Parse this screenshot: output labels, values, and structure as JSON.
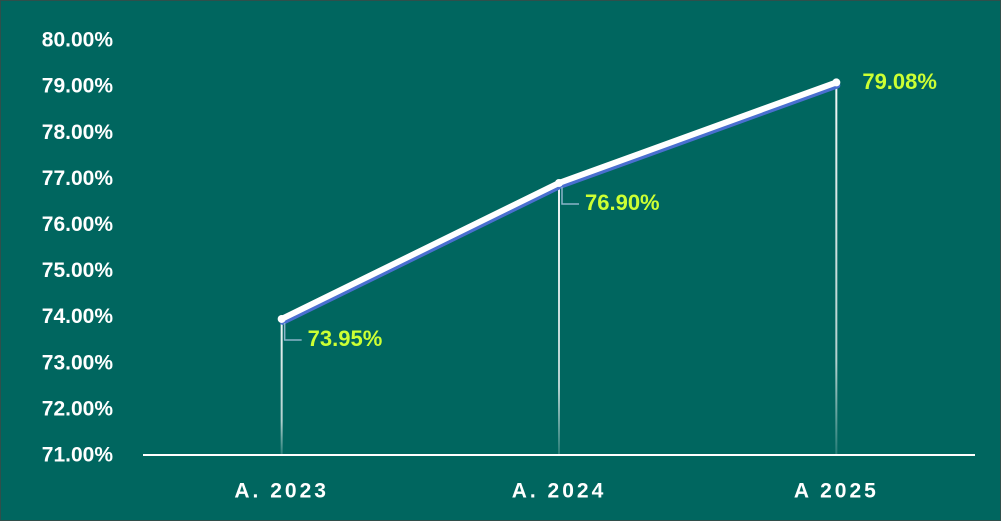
{
  "chart_data": {
    "type": "line",
    "categories": [
      "A. 2023",
      "A. 2024",
      "A 2025"
    ],
    "values": [
      73.95,
      76.9,
      79.08
    ],
    "value_labels": [
      "73.95%",
      "76.90%",
      "79.08%"
    ],
    "color": "#ffffff",
    "ylim": [
      71,
      80
    ],
    "yticks": [
      {
        "value": 71,
        "label": "71.00%"
      },
      {
        "value": 72,
        "label": "72.00%"
      },
      {
        "value": 73,
        "label": "73.00%"
      },
      {
        "value": 74,
        "label": "74.00%"
      },
      {
        "value": 75,
        "label": "75.00%"
      },
      {
        "value": 76,
        "label": "76.00%"
      },
      {
        "value": 77,
        "label": "77.00%"
      },
      {
        "value": 78,
        "label": "78.00%"
      },
      {
        "value": 79,
        "label": "79.00%"
      },
      {
        "value": 80,
        "label": "80.00%"
      }
    ]
  }
}
